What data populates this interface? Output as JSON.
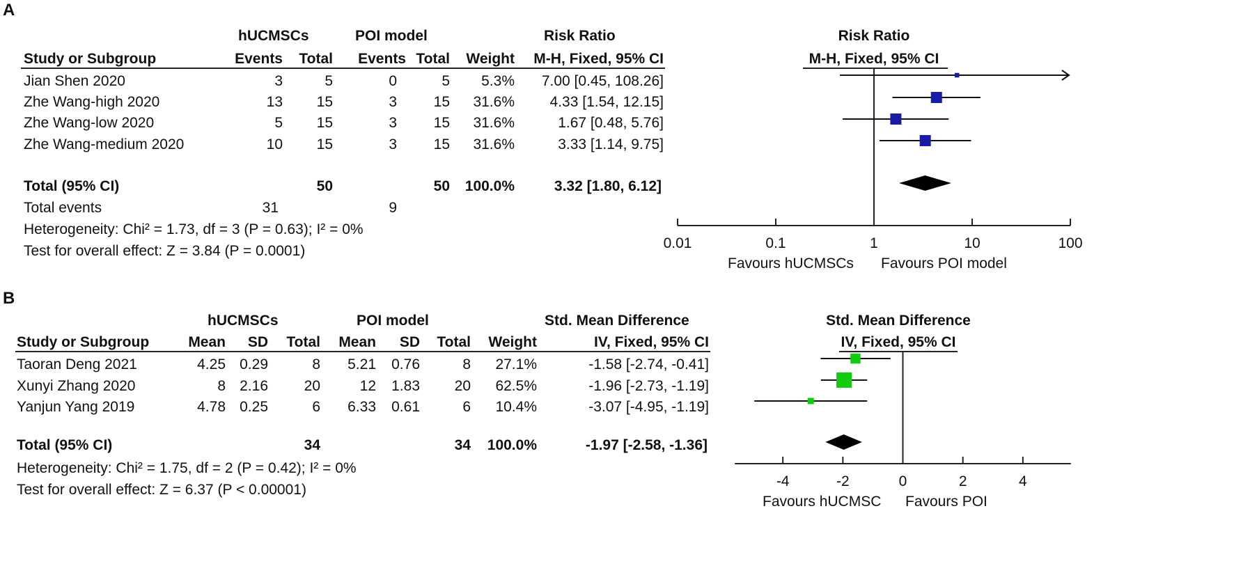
{
  "panelA": {
    "label": "A",
    "group1": "hUCMSCs",
    "group2": "POI model",
    "effect_head": "Risk Ratio",
    "cols": {
      "study": "Study or Subgroup",
      "events1": "Events",
      "total1": "Total",
      "events2": "Events",
      "total2": "Total",
      "weight": "Weight",
      "ci": "M-H, Fixed, 95% CI"
    },
    "rows": [
      {
        "study": "Jian Shen 2020",
        "e1": "3",
        "t1": "5",
        "e2": "0",
        "t2": "5",
        "w": "5.3%",
        "ci": "7.00 [0.45, 108.26]"
      },
      {
        "study": "Zhe Wang-high 2020",
        "e1": "13",
        "t1": "15",
        "e2": "3",
        "t2": "15",
        "w": "31.6%",
        "ci": "4.33 [1.54, 12.15]"
      },
      {
        "study": "Zhe Wang-low 2020",
        "e1": "5",
        "t1": "15",
        "e2": "3",
        "t2": "15",
        "w": "31.6%",
        "ci": "1.67 [0.48, 5.76]"
      },
      {
        "study": "Zhe Wang-medium 2020",
        "e1": "10",
        "t1": "15",
        "e2": "3",
        "t2": "15",
        "w": "31.6%",
        "ci": "3.33 [1.14, 9.75]"
      }
    ],
    "total": {
      "label": "Total (95% CI)",
      "t1": "50",
      "t2": "50",
      "w": "100.0%",
      "ci": "3.32 [1.80, 6.12]"
    },
    "events_row": {
      "label": "Total events",
      "e1": "31",
      "e2": "9"
    },
    "heterogeneity": "Heterogeneity: Chi² = 1.73, df = 3 (P = 0.63); I² = 0%",
    "overall": "Test for overall effect: Z = 3.84 (P = 0.0001)",
    "plot_head1": "Risk Ratio",
    "plot_head2": "M-H, Fixed, 95% CI",
    "favours_left": "Favours hUCMSCs",
    "favours_right": "Favours POI model"
  },
  "panelB": {
    "label": "B",
    "group1": "hUCMSCs",
    "group2": "POI model",
    "effect_head": "Std. Mean Difference",
    "cols": {
      "study": "Study or Subgroup",
      "mean1": "Mean",
      "sd1": "SD",
      "total1": "Total",
      "mean2": "Mean",
      "sd2": "SD",
      "total2": "Total",
      "weight": "Weight",
      "ci": "IV, Fixed, 95% CI"
    },
    "rows": [
      {
        "study": "Taoran Deng 2021",
        "m1": "4.25",
        "sd1": "0.29",
        "t1": "8",
        "m2": "5.21",
        "sd2": "0.76",
        "t2": "8",
        "w": "27.1%",
        "ci": "-1.58 [-2.74, -0.41]"
      },
      {
        "study": "Xunyi Zhang 2020",
        "m1": "8",
        "sd1": "2.16",
        "t1": "20",
        "m2": "12",
        "sd2": "1.83",
        "t2": "20",
        "w": "62.5%",
        "ci": "-1.96 [-2.73, -1.19]"
      },
      {
        "study": "Yanjun Yang 2019",
        "m1": "4.78",
        "sd1": "0.25",
        "t1": "6",
        "m2": "6.33",
        "sd2": "0.61",
        "t2": "6",
        "w": "10.4%",
        "ci": "-3.07 [-4.95, -1.19]"
      }
    ],
    "total": {
      "label": "Total (95% CI)",
      "t1": "34",
      "t2": "34",
      "w": "100.0%",
      "ci": "-1.97 [-2.58, -1.36]"
    },
    "heterogeneity": "Heterogeneity: Chi² = 1.75, df = 2 (P = 0.42); I² = 0%",
    "overall": "Test for overall effect: Z = 6.37 (P < 0.00001)",
    "plot_head1": "Std. Mean Difference",
    "plot_head2": "IV, Fixed, 95% CI",
    "favours_left": "Favours hUCMSC",
    "favours_right": "Favours POI"
  },
  "chart_data": [
    {
      "type": "forest",
      "scale": "log",
      "title": "Risk Ratio",
      "subtitle": "M-H, Fixed, 95% CI",
      "xlim": [
        0.01,
        100
      ],
      "ticks": [
        0.01,
        0.1,
        1,
        10,
        100
      ],
      "tick_labels": [
        "0.01",
        "0.1",
        "1",
        "10",
        "100"
      ],
      "null_value": 1,
      "color": "#1a1aa8",
      "studies": [
        {
          "name": "Jian Shen 2020",
          "est": 7.0,
          "lo": 0.45,
          "hi": 108.26,
          "weight": 5.3,
          "arrow_right": true
        },
        {
          "name": "Zhe Wang-high 2020",
          "est": 4.33,
          "lo": 1.54,
          "hi": 12.15,
          "weight": 31.6
        },
        {
          "name": "Zhe Wang-low 2020",
          "est": 1.67,
          "lo": 0.48,
          "hi": 5.76,
          "weight": 31.6
        },
        {
          "name": "Zhe Wang-medium 2020",
          "est": 3.33,
          "lo": 1.14,
          "hi": 9.75,
          "weight": 31.6
        }
      ],
      "pooled": {
        "est": 3.32,
        "lo": 1.8,
        "hi": 6.12
      },
      "xlabel_left": "Favours hUCMSCs",
      "xlabel_right": "Favours POI model"
    },
    {
      "type": "forest",
      "scale": "linear",
      "title": "Std. Mean Difference",
      "subtitle": "IV, Fixed, 95% CI",
      "xlim": [
        -6,
        6
      ],
      "ticks": [
        -4,
        -2,
        0,
        2,
        4
      ],
      "tick_labels": [
        "-4",
        "-2",
        "0",
        "2",
        "4"
      ],
      "null_value": 0,
      "color": "#11cc11",
      "studies": [
        {
          "name": "Taoran Deng 2021",
          "est": -1.58,
          "lo": -2.74,
          "hi": -0.41,
          "weight": 27.1
        },
        {
          "name": "Xunyi Zhang 2020",
          "est": -1.96,
          "lo": -2.73,
          "hi": -1.19,
          "weight": 62.5
        },
        {
          "name": "Yanjun Yang 2019",
          "est": -3.07,
          "lo": -4.95,
          "hi": -1.19,
          "weight": 10.4
        }
      ],
      "pooled": {
        "est": -1.97,
        "lo": -2.58,
        "hi": -1.36
      },
      "xlabel_left": "Favours hUCMSC",
      "xlabel_right": "Favours POI"
    }
  ]
}
